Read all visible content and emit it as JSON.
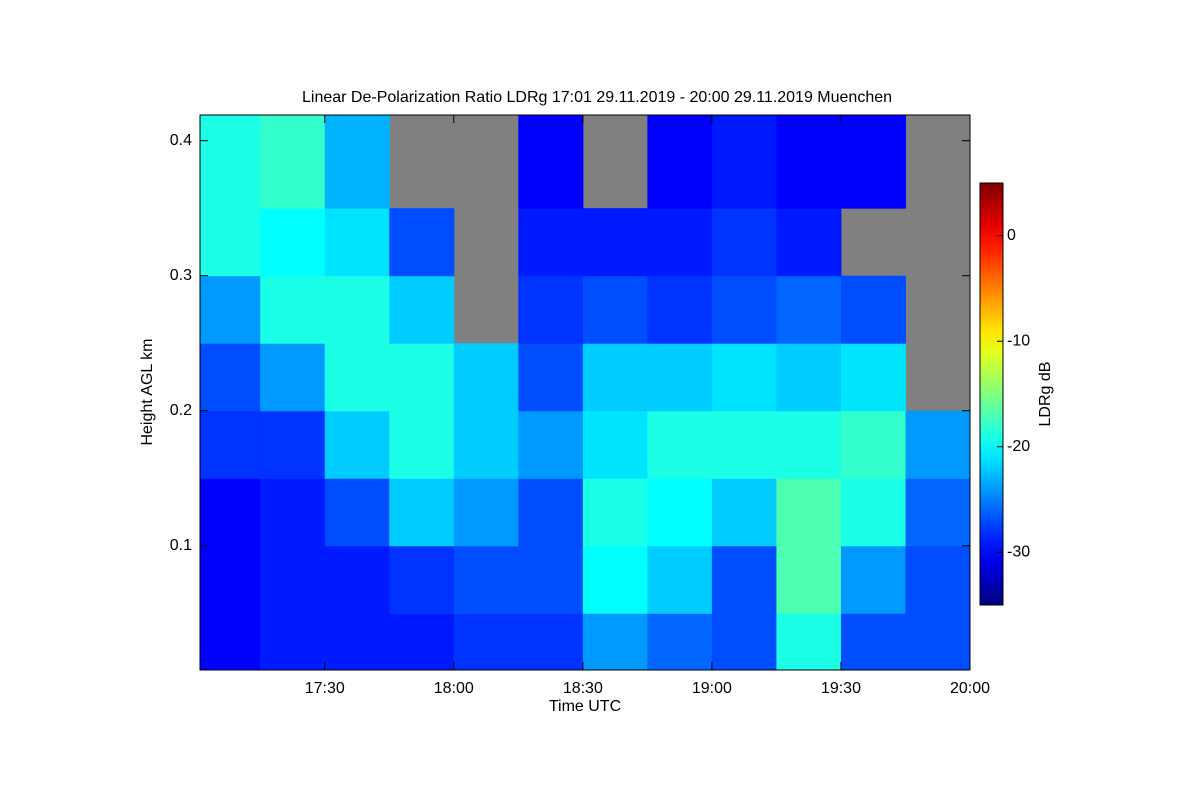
{
  "chart_data": {
    "type": "heatmap",
    "title": "Linear De-Polarization Ratio LDRg   17:01 29.11.2019 - 20:00 29.11.2019 Muenchen",
    "x_label": "Time UTC",
    "y_label": "Height AGL km",
    "colorbar_label": "LDRg dB",
    "colormap": "jet",
    "nodata_color": "#808080",
    "x_bins": [
      1021,
      1035,
      1050,
      1065,
      1080,
      1095,
      1110,
      1125,
      1140,
      1155,
      1170,
      1185,
      1200
    ],
    "y_bins": [
      0.008,
      0.05,
      0.1,
      0.15,
      0.2,
      0.25,
      0.3,
      0.35,
      0.419
    ],
    "values": [
      [
        -30,
        -29,
        -29,
        -29,
        -28,
        -28,
        -24,
        -26,
        -27,
        -19,
        -27,
        -27
      ],
      [
        -30,
        -29,
        -29,
        -28,
        -27,
        -27,
        -20,
        -22,
        -27,
        -17,
        -24,
        -27
      ],
      [
        -30,
        -29,
        -27,
        -22,
        -24,
        -27,
        -19,
        -20,
        -22,
        -17,
        -19,
        -26
      ],
      [
        -28,
        -28,
        -22,
        -19,
        -22,
        -24,
        -21,
        -19,
        -19,
        -19,
        -18,
        -24
      ],
      [
        -27,
        -24,
        -19,
        -19,
        -22,
        -27,
        -22,
        -22,
        -21,
        -22,
        -21,
        null
      ],
      [
        -24,
        -19,
        -19,
        -22,
        null,
        -28,
        -27,
        -28,
        -27,
        -26,
        -27,
        null
      ],
      [
        -19,
        -20,
        -21,
        -27,
        null,
        -29,
        -29,
        -29,
        -28,
        -29,
        null,
        null
      ],
      [
        -19,
        -18,
        -23,
        null,
        null,
        -30,
        null,
        -30,
        -29,
        -30,
        -30,
        null
      ]
    ],
    "xlim": [
      1021,
      1200
    ],
    "xticks": [
      {
        "value": 1050,
        "label": "17:30"
      },
      {
        "value": 1080,
        "label": "18:00"
      },
      {
        "value": 1110,
        "label": "18:30"
      },
      {
        "value": 1140,
        "label": "19:00"
      },
      {
        "value": 1170,
        "label": "19:30"
      },
      {
        "value": 1200,
        "label": "20:00"
      }
    ],
    "ylim": [
      0.008,
      0.419
    ],
    "yticks": [
      0.1,
      0.2,
      0.3,
      0.4
    ],
    "clim": [
      -35,
      5
    ],
    "cticks": [
      -30,
      -20,
      -10,
      0
    ]
  }
}
